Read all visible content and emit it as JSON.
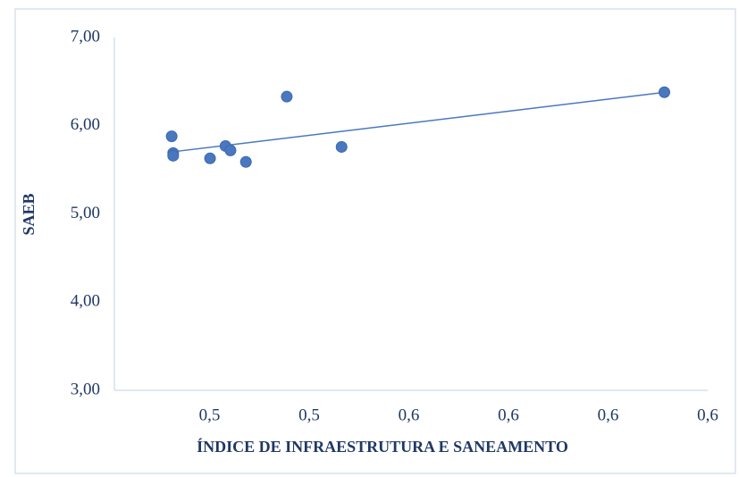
{
  "chart_data": {
    "type": "scatter",
    "xlabel": "ÍNDICE DE INFRAESTRUTURA E SANEAMENTO",
    "ylabel": "SAEB",
    "x": [
      0.5124,
      0.5127,
      0.5127,
      0.5201,
      0.5232,
      0.5242,
      0.5273,
      0.5355,
      0.5465,
      0.6113
    ],
    "values": [
      5.88,
      5.69,
      5.66,
      5.63,
      5.77,
      5.72,
      5.59,
      6.33,
      5.76,
      6.38
    ],
    "color": "#4a78bf",
    "trendline": true,
    "xlim": [
      0.5,
      0.62
    ],
    "xticks": [
      {
        "value": 0.52,
        "label": "0,5"
      },
      {
        "value": 0.54,
        "label": "0,5"
      },
      {
        "value": 0.56,
        "label": "0,6"
      },
      {
        "value": 0.58,
        "label": "0,6"
      },
      {
        "value": 0.6,
        "label": "0,6"
      },
      {
        "value": 0.62,
        "label": "0,6"
      }
    ],
    "ylim": [
      3,
      7
    ],
    "yticks": [
      {
        "value": 3,
        "label": "3,00"
      },
      {
        "value": 4,
        "label": "4,00"
      },
      {
        "value": 5,
        "label": "5,00"
      },
      {
        "value": 6,
        "label": "6,00"
      },
      {
        "value": 7,
        "label": "7,00"
      }
    ]
  }
}
